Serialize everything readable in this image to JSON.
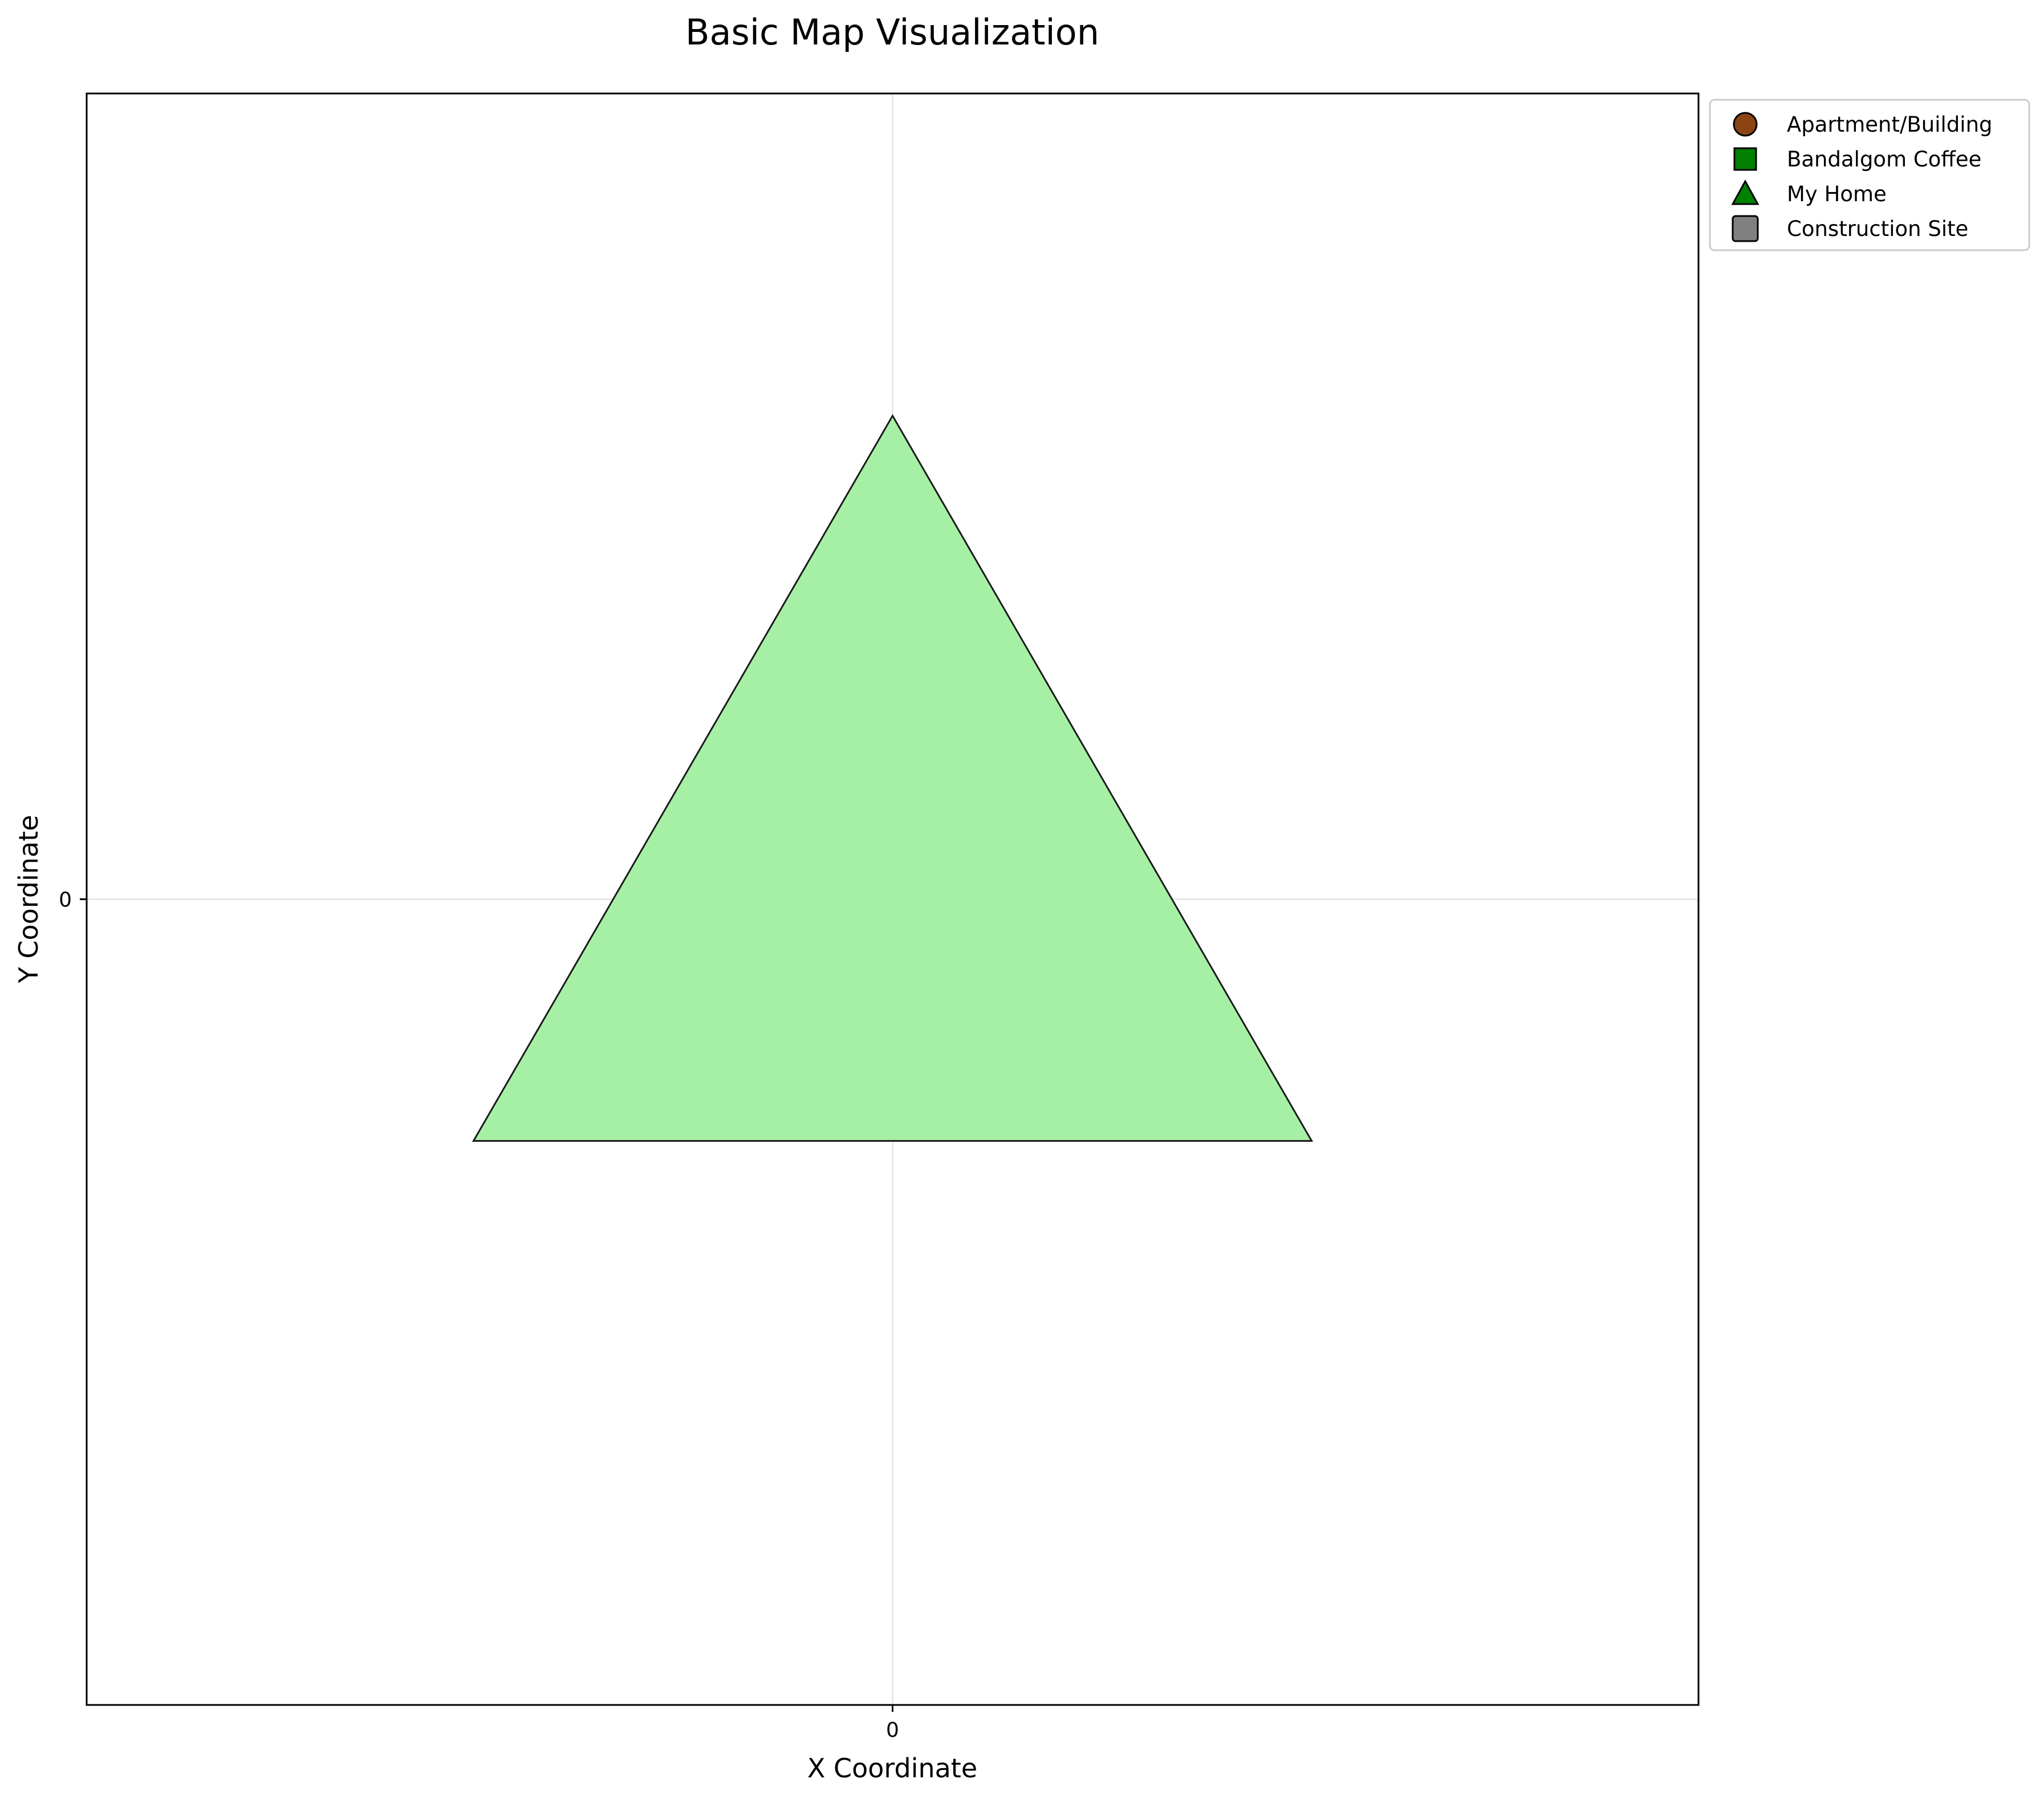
{
  "chart_data": {
    "type": "scatter",
    "title": "Basic Map Visualization",
    "xlabel": "X Coordinate",
    "ylabel": "Y Coordinate",
    "xlim": [
      -1,
      1
    ],
    "ylim": [
      -1,
      1
    ],
    "xticks": [
      0
    ],
    "yticks": [
      0
    ],
    "grid": true,
    "legend_position": "outside top-right",
    "polygons": [
      {
        "name": "My Home area",
        "points": [
          [
            0,
            0.6
          ],
          [
            -0.52,
            -0.3
          ],
          [
            0.52,
            -0.3
          ]
        ],
        "fill": "#a6f0a6",
        "stroke": "#1a1a1a"
      }
    ],
    "legend": [
      {
        "label": "Apartment/Building",
        "marker": "circle",
        "color": "#8b4513"
      },
      {
        "label": "Bandalgom Coffee",
        "marker": "square",
        "color": "#008000"
      },
      {
        "label": "My Home",
        "marker": "triangle",
        "color": "#008000"
      },
      {
        "label": "Construction Site",
        "marker": "rounded-square",
        "color": "#808080"
      }
    ]
  }
}
